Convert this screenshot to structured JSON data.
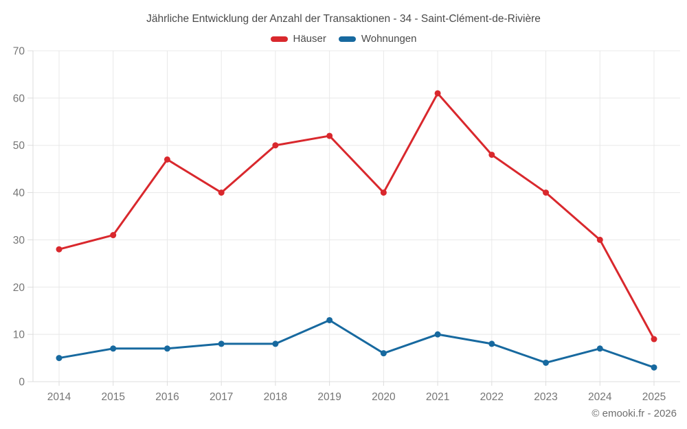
{
  "chart_data": {
    "type": "line",
    "title": "Jährliche Entwicklung der Anzahl der Transaktionen - 34 - Saint-Clément-de-Rivière",
    "categories": [
      "2014",
      "2015",
      "2016",
      "2017",
      "2018",
      "2019",
      "2020",
      "2021",
      "2022",
      "2023",
      "2024",
      "2025"
    ],
    "series": [
      {
        "name": "Häuser",
        "color": "#d9282d",
        "values": [
          28,
          31,
          47,
          40,
          50,
          52,
          40,
          61,
          48,
          40,
          30,
          9
        ]
      },
      {
        "name": "Wohnungen",
        "color": "#17699f",
        "values": [
          5,
          7,
          7,
          8,
          8,
          13,
          6,
          10,
          8,
          4,
          7,
          3
        ]
      }
    ],
    "xlabel": "",
    "ylabel": "",
    "ylim": [
      0,
      70
    ],
    "yticks": [
      0,
      10,
      20,
      30,
      40,
      50,
      60,
      70
    ],
    "grid": true,
    "legend_position": "top"
  },
  "footer": {
    "credit": "© emooki.fr - 2026"
  },
  "theme": {
    "background": "#ffffff",
    "grid_color": "#e8e8e8",
    "axis_line_color": "#dcdcdc",
    "tick_label_color": "#757575",
    "title_color": "#4a4a4a",
    "legend_label_color": "#4a4a4a",
    "footer_color": "#6e6e6e"
  }
}
